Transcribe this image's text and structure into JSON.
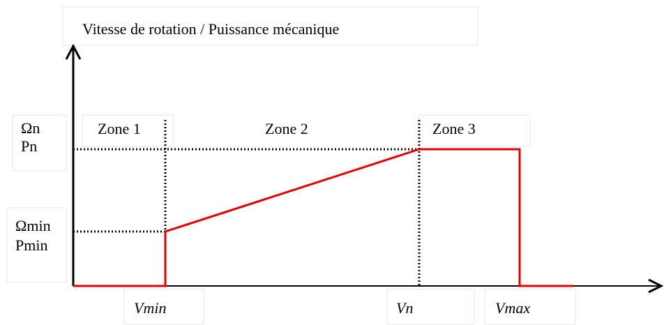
{
  "title": "Vitesse de rotation / Puissance mécanique",
  "y_labels": {
    "nominal": [
      "Ωn",
      "Pn"
    ],
    "minimum": [
      "Ωmin",
      "Pmin"
    ]
  },
  "zones": [
    "Zone 1",
    "Zone 2",
    "Zone 3"
  ],
  "x_labels": [
    "Vmin",
    "Vn",
    "Vmax"
  ]
}
